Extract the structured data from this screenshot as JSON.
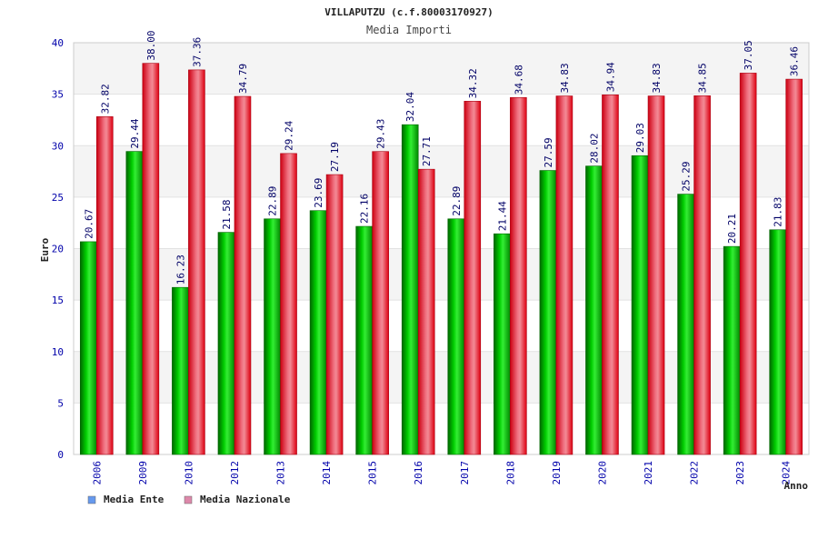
{
  "chart_data": {
    "type": "bar",
    "title": "VILLAPUTZU (c.f.80003170927)",
    "subtitle": "Media Importi",
    "xlabel": "Anno",
    "ylabel": "Euro",
    "ylim": [
      0,
      40
    ],
    "yticks": [
      0,
      5,
      10,
      15,
      20,
      25,
      30,
      35,
      40
    ],
    "grid": true,
    "legend_position": "bottom-left",
    "categories": [
      "2006",
      "2009",
      "2010",
      "2012",
      "2013",
      "2014",
      "2015",
      "2016",
      "2017",
      "2018",
      "2019",
      "2020",
      "2021",
      "2022",
      "2023",
      "2024"
    ],
    "series": [
      {
        "name": "Media Ente",
        "color": "#00aa00",
        "legend_color": "#6699ee",
        "values": [
          20.67,
          29.44,
          16.23,
          21.58,
          22.89,
          23.69,
          22.16,
          32.04,
          22.89,
          21.44,
          27.59,
          28.02,
          29.03,
          25.29,
          20.21,
          21.83
        ],
        "labels": [
          "20.67",
          "29.44",
          "16.23",
          "21.58",
          "22.89",
          "23.69",
          "22.16",
          "32.04",
          "22.89",
          "21.44",
          "27.59",
          "28.02",
          "29.03",
          "25.29",
          "20.21",
          "21.83"
        ]
      },
      {
        "name": "Media Nazionale",
        "color": "#ee1122",
        "legend_color": "#dd88aa",
        "values": [
          32.82,
          38.0,
          37.36,
          34.79,
          29.24,
          27.19,
          29.43,
          27.71,
          34.32,
          34.68,
          34.83,
          34.94,
          34.83,
          34.85,
          37.05,
          36.46
        ],
        "labels": [
          "32.82",
          "38.00",
          "37.36",
          "34.79",
          "29.24",
          "27.19",
          "29.43",
          "27.71",
          "34.32",
          "34.68",
          "34.83",
          "34.94",
          "34.83",
          "34.85",
          "37.05",
          "36.46"
        ]
      }
    ]
  }
}
